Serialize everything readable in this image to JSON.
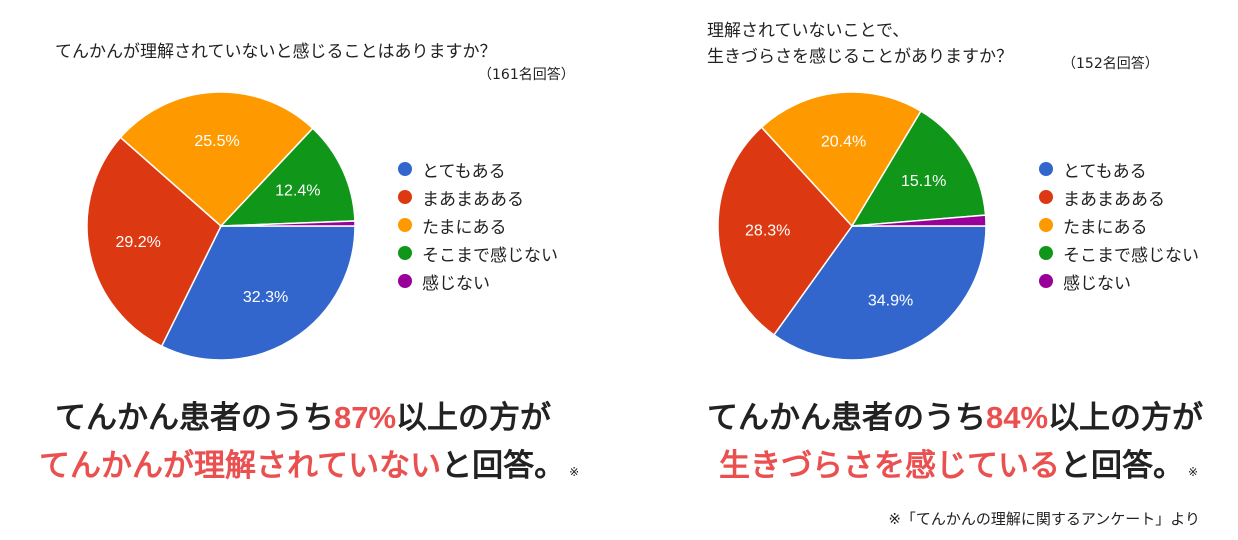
{
  "chart_data": [
    {
      "type": "pie",
      "title": "てんかんが理解されていないと感じることはありますか？",
      "respondents": "（161名回答）",
      "categories": [
        "とてもある",
        "まあまあある",
        "たまにある",
        "そこまで感じない",
        "感じない"
      ],
      "values": [
        32.3,
        29.2,
        25.5,
        12.4,
        0.6
      ],
      "labels": [
        "32.3%",
        "29.2%",
        "25.5%",
        "12.4%",
        ""
      ],
      "colors": [
        "#3366cc",
        "#dc3912",
        "#ff9900",
        "#109618",
        "#990099"
      ],
      "legend_position": "right"
    },
    {
      "type": "pie",
      "title": [
        "理解されていないことで、",
        "生きづらさを感じることがありますか？"
      ],
      "respondents": "（152名回答）",
      "categories": [
        "とてもある",
        "まあまあある",
        "たまにある",
        "そこまで感じない",
        "感じない"
      ],
      "values": [
        34.9,
        28.3,
        20.4,
        15.1,
        1.3
      ],
      "labels": [
        "34.9%",
        "28.3%",
        "20.4%",
        "15.1%",
        ""
      ],
      "colors": [
        "#3366cc",
        "#dc3912",
        "#ff9900",
        "#109618",
        "#990099"
      ],
      "legend_position": "right"
    }
  ],
  "summaries": [
    {
      "line1_pre": "てんかん患者のうち",
      "line1_hl": "87%",
      "line1_post": "以上の方が",
      "line2_hl": "てんかんが理解されていない",
      "line2_post": "と回答。",
      "mark": "※"
    },
    {
      "line1_pre": "てんかん患者のうち",
      "line1_hl": "84%",
      "line1_post": "以上の方が",
      "line2_hl": "生きづらさを感じている",
      "line2_post": "と回答。",
      "mark": "※"
    }
  ],
  "colors": {
    "highlight": "#e9504f"
  },
  "source_note": "※「てんかんの理解に関するアンケート」より"
}
